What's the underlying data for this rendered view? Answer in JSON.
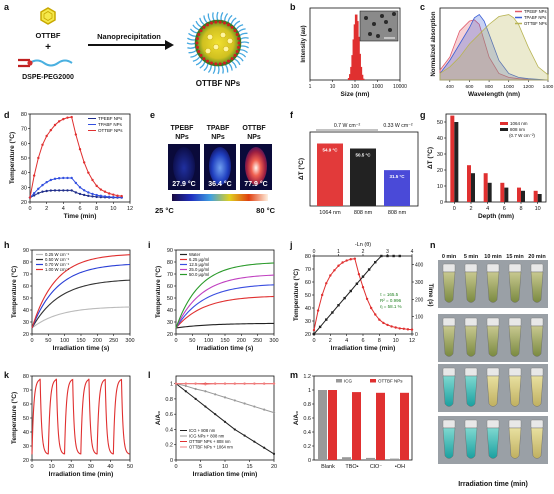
{
  "panel_letters": [
    "a",
    "b",
    "c",
    "d",
    "e",
    "f",
    "g",
    "h",
    "i",
    "j",
    "k",
    "l",
    "m",
    "n"
  ],
  "panel_a": {
    "molecule_label": "OTTBF",
    "plus": "+",
    "polymer_label": "DSPE-PEG2000",
    "arrow_label": "Nanoprecipitation",
    "product_label": "OTTBF NPs"
  },
  "panel_e": {
    "labels": [
      "TPEBF\nNPs",
      "TPABF\nNPs",
      "OTTBF\nNPs"
    ],
    "label_lines": [
      [
        "TPEBF",
        "NPs"
      ],
      [
        "TPABF",
        "NPs"
      ],
      [
        "OTTBF",
        "NPs"
      ]
    ],
    "temperatures": [
      "27.9 °C",
      "36.4 °C",
      "77.9 °C"
    ],
    "scale_min": "25 °C",
    "scale_max": "80 °C"
  },
  "panel_n": {
    "time_labels": [
      "0 min",
      "5 min",
      "10 min",
      "15 min",
      "20 min"
    ],
    "row_labels": [
      "OTTBF NPs",
      "OTTBF NPs",
      "ICG",
      "ICG NPs"
    ],
    "group_labels": [
      "1064 nm",
      "808 nm"
    ],
    "xlabel": "Irradiation time (min)"
  },
  "chart_data": [
    {
      "panel": "b",
      "type": "bar",
      "xlabel": "Size (nm)",
      "ylabel": "Intensity (au)",
      "xscale": "log",
      "xlim": [
        1,
        10000
      ],
      "xticks": [
        "1",
        "10",
        "100",
        "1000",
        "10000"
      ],
      "x": [
        55,
        62,
        70,
        79,
        89,
        100,
        113,
        127,
        143,
        161,
        182,
        205,
        231
      ],
      "values": [
        3,
        9,
        20,
        38,
        62,
        85,
        100,
        90,
        66,
        40,
        20,
        8,
        2
      ],
      "inset": "TEM image"
    },
    {
      "panel": "c",
      "type": "area",
      "xlabel": "Wavelength (nm)",
      "ylabel": "Normalized absorption",
      "xlim": [
        300,
        1400
      ],
      "xticks": [
        400,
        600,
        800,
        1000,
        1200,
        1400
      ],
      "legend_position": "top-right",
      "series": [
        {
          "name": "TPEBF NPs",
          "color": "#e05a6a",
          "x": [
            300,
            400,
            500,
            600,
            650,
            700,
            750,
            800,
            900,
            1000,
            1100,
            1200,
            1400
          ],
          "y": [
            0.15,
            0.35,
            0.75,
            0.9,
            0.92,
            0.85,
            0.6,
            0.35,
            0.1,
            0.04,
            0.02,
            0.01,
            0.0
          ]
        },
        {
          "name": "TPABF NPs",
          "color": "#3b5fd6",
          "x": [
            300,
            400,
            500,
            600,
            650,
            700,
            750,
            800,
            900,
            1000,
            1100,
            1200,
            1400
          ],
          "y": [
            0.1,
            0.3,
            0.55,
            0.8,
            0.95,
            1.0,
            0.9,
            0.7,
            0.3,
            0.1,
            0.04,
            0.02,
            0.0
          ]
        },
        {
          "name": "OTTBF NPs",
          "color": "#b8b454",
          "x": [
            300,
            400,
            500,
            600,
            700,
            800,
            900,
            1000,
            1050,
            1100,
            1200,
            1300,
            1400
          ],
          "y": [
            0.1,
            0.2,
            0.35,
            0.55,
            0.7,
            0.85,
            0.97,
            1.0,
            0.95,
            0.85,
            0.5,
            0.2,
            0.08
          ]
        }
      ]
    },
    {
      "panel": "d",
      "type": "line",
      "xlabel": "Time (min)",
      "ylabel": "Temperature (°C)",
      "xlim": [
        0,
        12
      ],
      "ylim": [
        20,
        80
      ],
      "xticks": [
        0,
        2,
        4,
        6,
        8,
        10,
        12
      ],
      "yticks": [
        20,
        30,
        40,
        50,
        60,
        70,
        80
      ],
      "legend_position": "top-right",
      "x": [
        0,
        0.5,
        1,
        1.5,
        2,
        2.5,
        3,
        3.5,
        4,
        4.5,
        5,
        5.5,
        6,
        6.5,
        7,
        7.5,
        8,
        8.5,
        9,
        9.5,
        10,
        10.5,
        11
      ],
      "series": [
        {
          "name": "TPEBF NPs",
          "color": "#1f2d8a",
          "values": [
            23,
            24.5,
            26,
            27,
            27.5,
            27.8,
            27.9,
            27.9,
            27.9,
            27.9,
            27.9,
            26.5,
            25.5,
            24.8,
            24.2,
            23.8,
            23.5,
            23.3,
            23.2,
            23.1,
            23,
            23,
            23
          ]
        },
        {
          "name": "TPABF NPs",
          "color": "#3350e0",
          "values": [
            23,
            26,
            29,
            31.5,
            33.5,
            35,
            35.8,
            36.2,
            36.4,
            36.4,
            36.4,
            33,
            30,
            28,
            26.5,
            25.5,
            24.7,
            24.2,
            23.8,
            23.5,
            23.3,
            23.2,
            23.1
          ]
        },
        {
          "name": "OTTBF NPs",
          "color": "#e03030",
          "values": [
            23,
            38,
            50,
            59,
            65,
            69,
            72.5,
            75,
            76.5,
            77.5,
            77.9,
            66,
            56,
            47,
            40,
            35,
            31,
            28.5,
            27,
            25.8,
            25,
            24.3,
            24
          ]
        }
      ]
    },
    {
      "panel": "f",
      "type": "bar",
      "ylabel": "ΔT (°C)",
      "categories": [
        "1064 nm",
        "808 nm",
        "808 nm"
      ],
      "values": [
        54.9,
        50.5,
        31.5
      ],
      "data_labels": [
        "54.9 °C",
        "50.5 °C",
        "31.5 °C"
      ],
      "group_labels": [
        "0.7 W cm⁻²",
        "0.33 W cm⁻²"
      ],
      "colors": [
        "#e23a3a",
        "#222222",
        "#4a4ad8"
      ]
    },
    {
      "panel": "g",
      "type": "bar",
      "xlabel": "Depth (mm)",
      "ylabel": "ΔT (°C)",
      "xticks": [
        0,
        2,
        4,
        6,
        8,
        10
      ],
      "yticks": [
        0,
        10,
        20,
        30,
        40,
        50
      ],
      "ylim": [
        0,
        55
      ],
      "legend_position": "top-right",
      "legend_note": "(0.7 W cm⁻²)",
      "categories": [
        0,
        2,
        4,
        6,
        8,
        10
      ],
      "series": [
        {
          "name": "1064 nm",
          "color": "#e03030",
          "values": [
            54,
            23,
            18,
            12,
            9,
            7
          ]
        },
        {
          "name": "808 nm",
          "color": "#222222",
          "values": [
            50,
            18,
            12,
            9,
            7,
            5
          ]
        }
      ]
    },
    {
      "panel": "h",
      "type": "line",
      "xlabel": "Irradiation time (s)",
      "ylabel": "Temperature (°C)",
      "xlim": [
        0,
        300
      ],
      "ylim": [
        20,
        90
      ],
      "xticks": [
        0,
        50,
        100,
        150,
        200,
        250,
        300
      ],
      "yticks": [
        20,
        30,
        40,
        50,
        60,
        70,
        80,
        90
      ],
      "legend_position": "top-left",
      "series": [
        {
          "name": "0.25 W cm⁻²",
          "color": "#bbbbbb",
          "final": 43,
          "rate": 0.012
        },
        {
          "name": "0.50 W cm⁻²",
          "color": "#333333",
          "final": 66,
          "rate": 0.012
        },
        {
          "name": "0.70 W cm⁻²",
          "color": "#2a3fd6",
          "final": 79,
          "rate": 0.013
        },
        {
          "name": "1.00 W cm⁻²",
          "color": "#e03030",
          "final": 87,
          "rate": 0.014
        }
      ]
    },
    {
      "panel": "i",
      "type": "line",
      "xlabel": "Irradiation time (s)",
      "ylabel": "Temperature (°C)",
      "xlim": [
        0,
        300
      ],
      "ylim": [
        20,
        90
      ],
      "xticks": [
        0,
        50,
        100,
        150,
        200,
        250,
        300
      ],
      "yticks": [
        20,
        30,
        40,
        50,
        60,
        70,
        80,
        90
      ],
      "legend_position": "top-left",
      "series": [
        {
          "name": "Water",
          "color": "#222222",
          "final": 29,
          "rate": 0.01
        },
        {
          "name": "6.25 μg/ml",
          "color": "#e03030",
          "final": 52,
          "rate": 0.012
        },
        {
          "name": "12.5 μg/ml",
          "color": "#3a4ee0",
          "final": 62,
          "rate": 0.012
        },
        {
          "name": "25.0 μg/ml",
          "color": "#c040c0",
          "final": 70,
          "rate": 0.013
        },
        {
          "name": "50.0 μg/ml",
          "color": "#2a9a2a",
          "final": 80,
          "rate": 0.014
        }
      ]
    },
    {
      "panel": "j",
      "type": "line",
      "xlabel": "Irradiation time (min)",
      "ylabel": "Temperature (°C)",
      "top_xlabel": "-Ln (θ)",
      "right_ylabel": "Time (s)",
      "xlim": [
        0,
        12
      ],
      "ylim": [
        20,
        80
      ],
      "xticks": [
        0,
        2,
        4,
        6,
        8,
        10,
        12
      ],
      "yticks": [
        20,
        30,
        40,
        50,
        60,
        70,
        80
      ],
      "top_xticks": [
        0,
        1,
        2,
        3,
        4
      ],
      "right_yticks": [
        0,
        100,
        200,
        300,
        400
      ],
      "annotations": [
        "τ = 165.5",
        "R² = 0.996",
        "η = 58.1 %"
      ],
      "temperature": {
        "color": "#e03030",
        "x": [
          0,
          0.5,
          1,
          1.5,
          2,
          2.5,
          3,
          3.5,
          4,
          4.5,
          5,
          5.5,
          6,
          6.5,
          7,
          7.5,
          8,
          8.5,
          9,
          9.5,
          10,
          10.5,
          11,
          11.5,
          12
        ],
        "y": [
          23,
          38,
          50,
          59,
          65,
          69,
          72.5,
          75,
          76.5,
          77.5,
          77.9,
          66,
          56,
          47,
          40,
          35,
          31,
          28.5,
          27,
          25.8,
          25,
          24.3,
          24,
          23.6,
          23.4
        ]
      },
      "fit": {
        "color": "#222222",
        "lnx": [
          0,
          0.25,
          0.5,
          0.75,
          1,
          1.25,
          1.5,
          1.75,
          2,
          2.25,
          2.5,
          2.75,
          3,
          3.25,
          3.5
        ],
        "time": [
          0,
          41,
          83,
          124,
          166,
          207,
          248,
          290,
          331,
          372,
          414,
          455,
          497,
          538,
          580
        ]
      }
    },
    {
      "panel": "k",
      "type": "line",
      "xlabel": "Irradiation time (min)",
      "ylabel": "Temperature (°C)",
      "xlim": [
        0,
        50
      ],
      "ylim": [
        20,
        80
      ],
      "xticks": [
        0,
        10,
        20,
        30,
        40,
        50
      ],
      "yticks": [
        20,
        30,
        40,
        50,
        60,
        70,
        80
      ],
      "color": "#e03030",
      "cycles": 6,
      "cycle_length_min": 8.3,
      "max_temperature": 78,
      "min_temperature": 24
    },
    {
      "panel": "l",
      "type": "line",
      "xlabel": "Irradiation time (min)",
      "ylabel": "A/A₀",
      "xlim": [
        0,
        20
      ],
      "ylim": [
        0,
        1.1
      ],
      "xticks": [
        0,
        5,
        10,
        15,
        20
      ],
      "yticks": [
        0,
        0.2,
        0.4,
        0.6,
        0.8,
        1.0
      ],
      "legend_position": "bottom-left",
      "x": [
        0,
        2,
        4,
        6,
        8,
        10,
        12,
        14,
        16,
        18,
        20
      ],
      "series": [
        {
          "name": "ICG + 808 nm",
          "color": "#222222",
          "values": [
            1,
            0.9,
            0.8,
            0.7,
            0.6,
            0.5,
            0.4,
            0.32,
            0.24,
            0.16,
            0.08
          ]
        },
        {
          "name": "ICG NPs + 808 nm",
          "color": "#999999",
          "values": [
            1,
            0.97,
            0.93,
            0.9,
            0.86,
            0.82,
            0.78,
            0.74,
            0.7,
            0.66,
            0.62
          ]
        },
        {
          "name": "OTTBF NPs + 808 nm",
          "color": "#e03030",
          "values": [
            1,
            1,
            1,
            1,
            1,
            1,
            1,
            1,
            1,
            1,
            1
          ]
        },
        {
          "name": "OTTBF NPs + 1064 nm",
          "color": "#f08080",
          "values": [
            1,
            1,
            1,
            0.99,
            1,
            1,
            1,
            1,
            1,
            1,
            1
          ]
        }
      ]
    },
    {
      "panel": "m",
      "type": "bar",
      "ylabel": "A/A₀",
      "ylim": [
        0,
        1.2
      ],
      "yticks": [
        0,
        0.2,
        0.4,
        0.6,
        0.8,
        1.0,
        1.2
      ],
      "legend_position": "top",
      "categories": [
        "Blank",
        "TBO•",
        "ClO⁻",
        "•OH"
      ],
      "series": [
        {
          "name": "ICG",
          "color": "#999999",
          "values": [
            1,
            0.04,
            0.03,
            0.02
          ]
        },
        {
          "name": "OTTBF NPs",
          "color": "#e03030",
          "values": [
            1,
            0.97,
            0.96,
            0.96
          ]
        }
      ]
    }
  ]
}
